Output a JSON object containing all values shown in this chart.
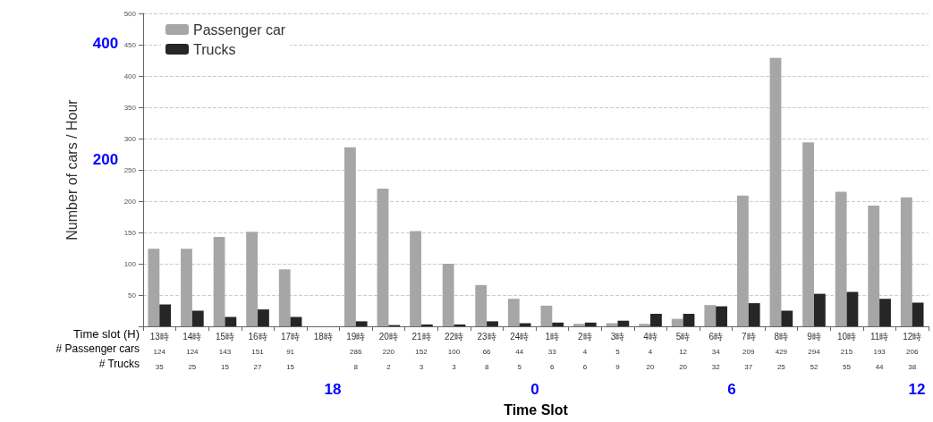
{
  "chart_data": {
    "type": "bar",
    "xlabel": "Time Slot",
    "ylabel": "Number of cars / Hour",
    "categories": [
      "13時",
      "14時",
      "15時",
      "16時",
      "17時",
      "18時",
      "19時",
      "20時",
      "21時",
      "22時",
      "23時",
      "24時",
      "1時",
      "2時",
      "3時",
      "4時",
      "5時",
      "6時",
      "7時",
      "8時",
      "9時",
      "10時",
      "11時",
      "12時"
    ],
    "series": [
      {
        "name": "Passenger car",
        "color": "#a6a6a6",
        "values": [
          124,
          124,
          143,
          151,
          91,
          null,
          286,
          220,
          152,
          100,
          66,
          44,
          33,
          4,
          5,
          4,
          12,
          34,
          209,
          429,
          294,
          215,
          193,
          206
        ]
      },
      {
        "name": "Trucks",
        "color": "#262626",
        "values": [
          35,
          25,
          15,
          27,
          15,
          null,
          8,
          2,
          3,
          3,
          8,
          5,
          6,
          6,
          9,
          20,
          20,
          32,
          37,
          25,
          52,
          55,
          44,
          38
        ]
      }
    ],
    "ylim": [
      0,
      500
    ],
    "yticks": [
      {
        "value": 0,
        "label": null
      },
      50,
      100,
      150,
      200,
      250,
      300,
      350,
      400,
      450,
      500
    ],
    "grid": "y",
    "legend": "top left",
    "data_labels": true,
    "annotations": [
      "Time slot (H)",
      "# Passenger cars",
      "# Trucks",
      "400",
      "200",
      "18",
      "0",
      "6",
      "12"
    ]
  }
}
